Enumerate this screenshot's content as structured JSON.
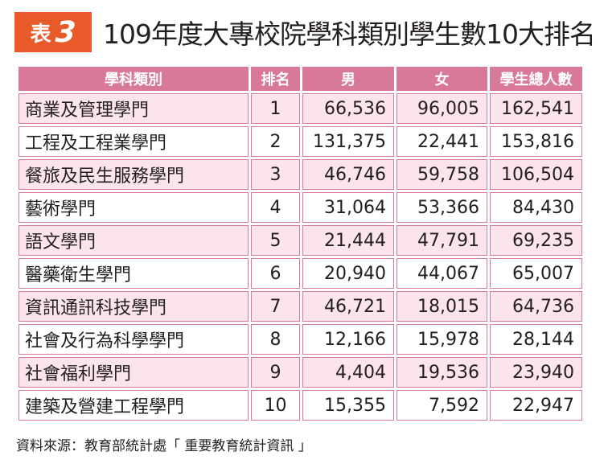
{
  "colors": {
    "accent": "#e85a2a",
    "header_bg": "#d9799a",
    "row_light": "#ffffff",
    "row_pink": "#fbe4ec"
  },
  "title": {
    "badge_word": "表",
    "badge_number": "3",
    "text": "109年度大專校院學科類別學生數10大排名"
  },
  "table": {
    "headers": [
      "學科類別",
      "排名",
      "男",
      "女",
      "學生總人數"
    ],
    "rows": [
      {
        "category": "商業及管理學門",
        "rank": "1",
        "male": "66,536",
        "female": "96,005",
        "total": "162,541"
      },
      {
        "category": "工程及工程業學門",
        "rank": "2",
        "male": "131,375",
        "female": "22,441",
        "total": "153,816"
      },
      {
        "category": "餐旅及民生服務學門",
        "rank": "3",
        "male": "46,746",
        "female": "59,758",
        "total": "106,504"
      },
      {
        "category": "藝術學門",
        "rank": "4",
        "male": "31,064",
        "female": "53,366",
        "total": "84,430"
      },
      {
        "category": "語文學門",
        "rank": "5",
        "male": "21,444",
        "female": "47,791",
        "total": "69,235"
      },
      {
        "category": "醫藥衛生學門",
        "rank": "6",
        "male": "20,940",
        "female": "44,067",
        "total": "65,007"
      },
      {
        "category": "資訊通訊科技學門",
        "rank": "7",
        "male": "46,721",
        "female": "18,015",
        "total": "64,736"
      },
      {
        "category": "社會及行為科學學門",
        "rank": "8",
        "male": "12,166",
        "female": "15,978",
        "total": "28,144"
      },
      {
        "category": "社會福利學門",
        "rank": "9",
        "male": "4,404",
        "female": "19,536",
        "total": "23,940"
      },
      {
        "category": "建築及營建工程學門",
        "rank": "10",
        "male": "15,355",
        "female": "7,592",
        "total": "22,947"
      }
    ]
  },
  "source": "資料來源：教育部統計處「 重要教育統計資訊 」"
}
